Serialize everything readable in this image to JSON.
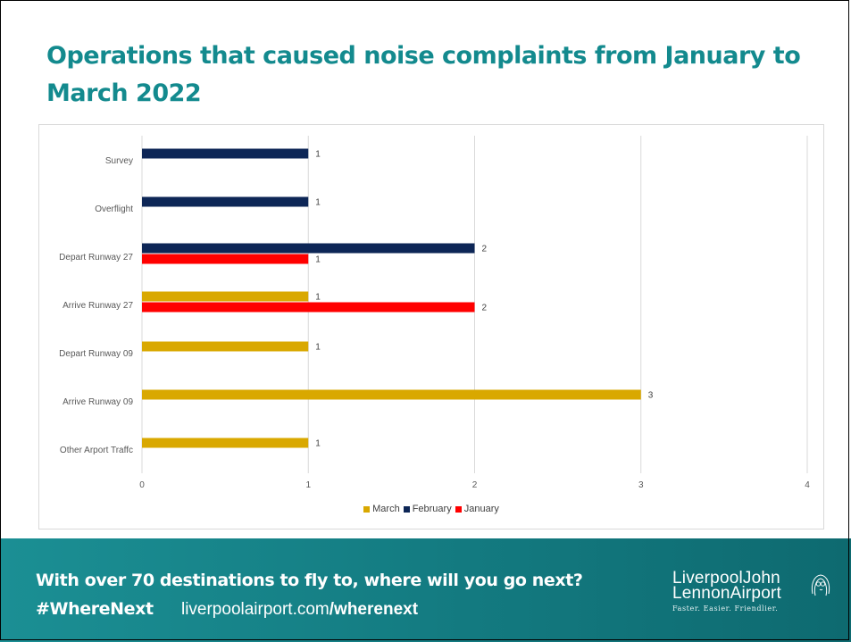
{
  "slide": {
    "title": "Operations that caused noise complaints from January to March 2022"
  },
  "chart_data": {
    "type": "bar",
    "orientation": "horizontal",
    "categories": [
      "Survey",
      "Overflight",
      "Depart Runway 27",
      "Arrive Runway 27",
      "Depart Runway 09",
      "Arrive Runway 09",
      "Other Arport Traffc"
    ],
    "series": [
      {
        "name": "March",
        "color": "#d9a800",
        "values": [
          null,
          null,
          null,
          1,
          1,
          3,
          1
        ]
      },
      {
        "name": "February",
        "color": "#0d2656",
        "values": [
          1,
          1,
          2,
          null,
          null,
          null,
          null
        ]
      },
      {
        "name": "January",
        "color": "#ff0000",
        "values": [
          null,
          null,
          1,
          2,
          null,
          null,
          null
        ]
      }
    ],
    "xlim": [
      0,
      4
    ],
    "xticks": [
      0,
      1,
      2,
      3,
      4
    ],
    "data_labels": true,
    "grid": "vertical",
    "legend": [
      "March",
      "February",
      "January"
    ],
    "legend_position": "bottom"
  },
  "footer": {
    "headline": "With over 70 destinations to fly to, where will you go next?",
    "hashtag": "#WhereNext",
    "url_domain": "liverpoolairport.com",
    "url_path": "/wherenext",
    "logo_line1": "LiverpoolJohn",
    "logo_line2": "LennonAirport",
    "logo_tagline": "Faster. Easier. Friendlier."
  }
}
